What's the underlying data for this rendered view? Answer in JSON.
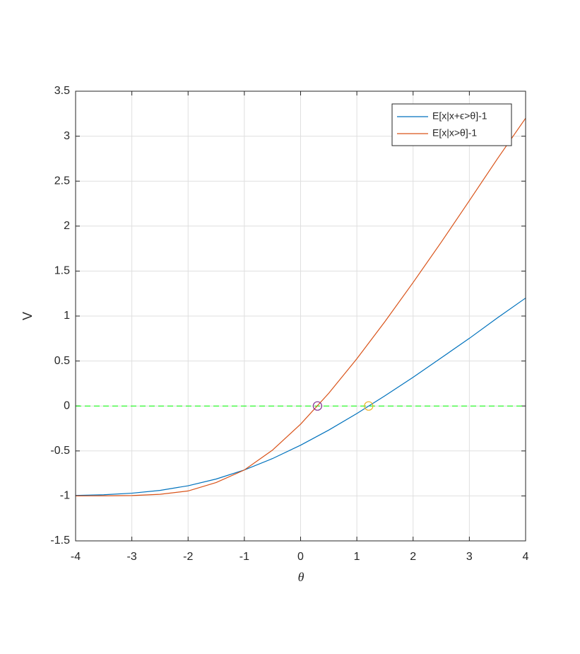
{
  "chart_data": {
    "type": "line",
    "xlabel": "θ",
    "ylabel": "V",
    "x": [
      -4,
      -3.5,
      -3,
      -2.5,
      -2,
      -1.5,
      -1,
      -0.5,
      0,
      0.5,
      1,
      1.5,
      2,
      2.5,
      3,
      3.5,
      4
    ],
    "series": [
      {
        "name": "E[x|x+ϵ>θ]-1",
        "color": "#0072BD",
        "values": [
          -0.995,
          -0.987,
          -0.97,
          -0.939,
          -0.887,
          -0.812,
          -0.711,
          -0.585,
          -0.436,
          -0.268,
          -0.084,
          0.114,
          0.319,
          0.535,
          0.752,
          0.98,
          1.2
        ]
      },
      {
        "name": "E[x|x>θ]-1",
        "color": "#D95319",
        "values": [
          -1.0,
          -0.999,
          -0.996,
          -0.982,
          -0.945,
          -0.851,
          -0.712,
          -0.491,
          -0.202,
          0.141,
          0.525,
          0.939,
          1.373,
          1.821,
          2.283,
          2.75,
          3.2
        ]
      }
    ],
    "hline": {
      "value": 0,
      "color": "#00FF00",
      "style": "dashed"
    },
    "markers": [
      {
        "x": 0.3,
        "y": 0,
        "color": "#7E2F8E"
      },
      {
        "x": 1.21,
        "y": 0,
        "color": "#EDB120"
      }
    ],
    "xlim": [
      -4,
      4
    ],
    "xticks": [
      -4,
      -3,
      -2,
      -1,
      0,
      1,
      2,
      3,
      4
    ],
    "ylim": [
      -1.5,
      3.5
    ],
    "yticks": [
      -1.5,
      -1,
      -0.5,
      0,
      0.5,
      1,
      1.5,
      2,
      2.5,
      3,
      3.5
    ],
    "grid": true,
    "legend": "northeast"
  }
}
